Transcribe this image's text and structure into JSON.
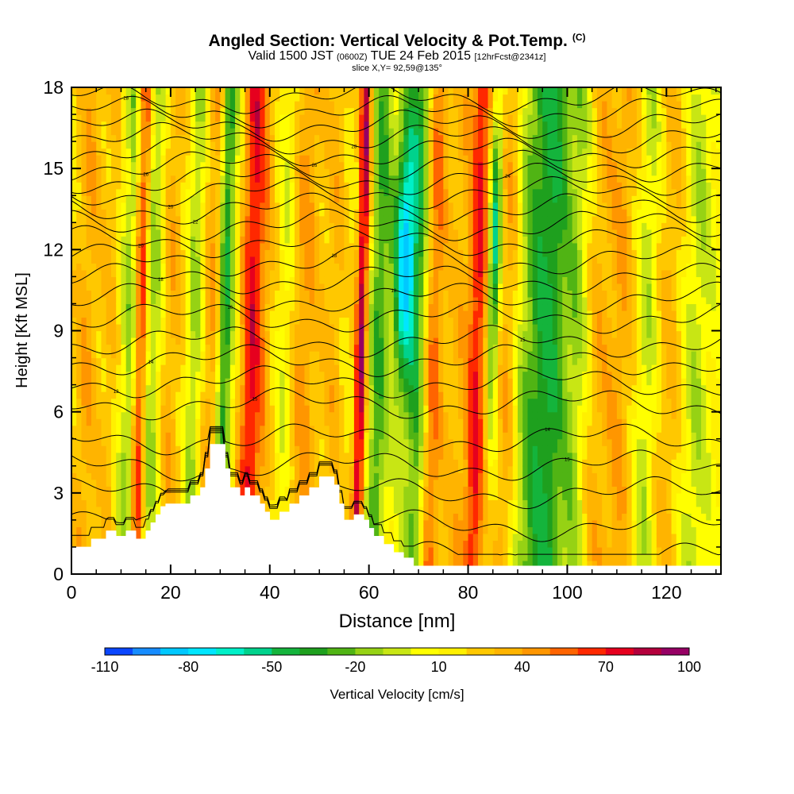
{
  "header": {
    "title": "Angled Section: Vertical Velocity & Pot.Temp.",
    "title_unit": "(C)",
    "valid_prefix": "Valid 1500 JST",
    "valid_utc": "(0600Z)",
    "valid_date": "TUE 24 Feb 2015",
    "forecast": "[12hrFcst@2341z]",
    "slice": "slice X,Y= 92,59@135°"
  },
  "chart_data": {
    "type": "heatmap",
    "xlabel": "Distance [nm]",
    "ylabel": "Height [Kft MSL]",
    "xlim": [
      0,
      131
    ],
    "ylim": [
      0,
      18
    ],
    "x_ticks": [
      0,
      20,
      40,
      60,
      80,
      100,
      120
    ],
    "y_ticks": [
      0,
      3,
      6,
      9,
      12,
      15,
      18
    ],
    "grid": false,
    "colorbar": {
      "label": "Vertical Velocity [cm/s]",
      "tick_labels": [
        "-110",
        "-80",
        "-50",
        "-20",
        "10",
        "40",
        "70",
        "100"
      ],
      "levels": [
        -110,
        -100,
        -90,
        -80,
        -70,
        -60,
        -50,
        -40,
        -30,
        -20,
        -10,
        0,
        10,
        20,
        30,
        40,
        50,
        60,
        70,
        80,
        90,
        100
      ],
      "colors": [
        "#0000ff",
        "#0a46ff",
        "#168cff",
        "#00c8ff",
        "#00e6ff",
        "#00f0c8",
        "#00d28c",
        "#14b43c",
        "#1ea01e",
        "#50b414",
        "#96d214",
        "#c8e614",
        "#ffff00",
        "#fff000",
        "#ffc800",
        "#ffb400",
        "#ff9600",
        "#ff6400",
        "#ff2800",
        "#e6001e",
        "#b4003c",
        "#960064",
        "#6e0096"
      ]
    },
    "velocity_features": [
      {
        "x": 3,
        "w": 3,
        "v": 25
      },
      {
        "x": 8,
        "w": 2,
        "v": 15
      },
      {
        "x": 12,
        "w": 2,
        "v": -30
      },
      {
        "x": 14,
        "w": 1.5,
        "v": 75
      },
      {
        "x": 16,
        "w": 2.5,
        "v": -35
      },
      {
        "x": 20,
        "w": 3,
        "v": 25
      },
      {
        "x": 25,
        "w": 2,
        "v": -30
      },
      {
        "x": 28,
        "w": 2.5,
        "v": 30
      },
      {
        "x": 31,
        "w": 1.5,
        "v": -55
      },
      {
        "x": 36,
        "w": 2,
        "v": 40
      },
      {
        "x": 38,
        "w": 3,
        "v": 30
      },
      {
        "x": 43,
        "w": 2,
        "v": -15
      },
      {
        "x": 47,
        "w": 3,
        "v": 30
      },
      {
        "x": 53,
        "w": 2.5,
        "v": 20
      },
      {
        "x": 58.5,
        "w": 1.2,
        "v": 75
      },
      {
        "x": 62,
        "w": 2,
        "v": -40
      },
      {
        "x": 67,
        "w": 2.2,
        "v": -95
      },
      {
        "x": 70,
        "w": 2,
        "v": -40
      },
      {
        "x": 73,
        "w": 2,
        "v": 40
      },
      {
        "x": 78,
        "w": 3,
        "v": 20
      },
      {
        "x": 82,
        "w": 2,
        "v": 55
      },
      {
        "x": 85,
        "w": 1.2,
        "v": -70
      },
      {
        "x": 88,
        "w": 2,
        "v": 25
      },
      {
        "x": 93,
        "w": 3,
        "v": -35
      },
      {
        "x": 97,
        "w": 3,
        "v": -45
      },
      {
        "x": 102,
        "w": 2.5,
        "v": -25
      },
      {
        "x": 106,
        "w": 3,
        "v": 20
      },
      {
        "x": 111,
        "w": 3,
        "v": 25
      },
      {
        "x": 116,
        "w": 2,
        "v": -20
      },
      {
        "x": 121,
        "w": 3,
        "v": 20
      },
      {
        "x": 126,
        "w": 3,
        "v": -20
      }
    ],
    "terrain_profile": [
      [
        0,
        1.0
      ],
      [
        4,
        1.0
      ],
      [
        4,
        1.3
      ],
      [
        7,
        1.3
      ],
      [
        7,
        1.6
      ],
      [
        9,
        1.6
      ],
      [
        9,
        1.4
      ],
      [
        11,
        1.4
      ],
      [
        11,
        1.6
      ],
      [
        13,
        1.6
      ],
      [
        13,
        1.3
      ],
      [
        15,
        1.3
      ],
      [
        15,
        1.6
      ],
      [
        16,
        1.6
      ],
      [
        16,
        1.9
      ],
      [
        17,
        1.9
      ],
      [
        17,
        2.2
      ],
      [
        18,
        2.2
      ],
      [
        18,
        2.5
      ],
      [
        19,
        2.5
      ],
      [
        19,
        2.6
      ],
      [
        24,
        2.6
      ],
      [
        24,
        2.9
      ],
      [
        26,
        2.9
      ],
      [
        26,
        3.2
      ],
      [
        27,
        3.2
      ],
      [
        27,
        3.9
      ],
      [
        28,
        3.9
      ],
      [
        28,
        4.8
      ],
      [
        31,
        4.8
      ],
      [
        31,
        3.9
      ],
      [
        32,
        3.9
      ],
      [
        32,
        3.2
      ],
      [
        34,
        3.2
      ],
      [
        34,
        2.9
      ],
      [
        35,
        2.9
      ],
      [
        35,
        3.2
      ],
      [
        36,
        3.2
      ],
      [
        36,
        2.9
      ],
      [
        38,
        2.9
      ],
      [
        38,
        2.6
      ],
      [
        39,
        2.6
      ],
      [
        39,
        2.3
      ],
      [
        40,
        2.3
      ],
      [
        40,
        2.0
      ],
      [
        42,
        2.0
      ],
      [
        42,
        2.3
      ],
      [
        44,
        2.3
      ],
      [
        44,
        2.6
      ],
      [
        46,
        2.6
      ],
      [
        46,
        2.9
      ],
      [
        48,
        2.9
      ],
      [
        48,
        3.2
      ],
      [
        50,
        3.2
      ],
      [
        50,
        3.6
      ],
      [
        53,
        3.6
      ],
      [
        53,
        3.3
      ],
      [
        54,
        3.3
      ],
      [
        54,
        2.6
      ],
      [
        55,
        2.6
      ],
      [
        55,
        2.0
      ],
      [
        57,
        2.0
      ],
      [
        57,
        2.2
      ],
      [
        59,
        2.2
      ],
      [
        59,
        2.0
      ],
      [
        60,
        2.0
      ],
      [
        60,
        1.7
      ],
      [
        61,
        1.7
      ],
      [
        61,
        1.4
      ],
      [
        63,
        1.4
      ],
      [
        63,
        1.1
      ],
      [
        65,
        1.1
      ],
      [
        65,
        0.8
      ],
      [
        67,
        0.8
      ],
      [
        67,
        0.6
      ],
      [
        69,
        0.6
      ],
      [
        69,
        0.3
      ],
      [
        131,
        0.3
      ]
    ],
    "theta_levels": [
      {
        "h": 0.6,
        "label": "",
        "lx": 0
      },
      {
        "h": 1.8,
        "label": "",
        "lx": 0
      },
      {
        "h": 3.0,
        "label": "",
        "lx": 0
      },
      {
        "h": 4.0,
        "label": "15",
        "lx": 100
      },
      {
        "h": 5.0,
        "label": "14",
        "lx": 96
      },
      {
        "h": 6.3,
        "label": "15",
        "lx": 37
      },
      {
        "h": 7.1,
        "label": "12",
        "lx": 9
      },
      {
        "h": 7.9,
        "label": "14",
        "lx": 16
      },
      {
        "h": 8.6,
        "label": "15",
        "lx": 91
      },
      {
        "h": 9.5,
        "label": "16",
        "lx": 32
      },
      {
        "h": 10.2,
        "label": "18",
        "lx": 65
      },
      {
        "h": 10.9,
        "label": "18",
        "lx": 18
      },
      {
        "h": 11.6,
        "label": "18",
        "lx": 53
      },
      {
        "h": 12.3,
        "label": "20",
        "lx": 14
      },
      {
        "h": 12.9,
        "label": "",
        "lx": 0
      },
      {
        "h": 13.5,
        "label": "22",
        "lx": 25
      },
      {
        "h": 14.1,
        "label": "20",
        "lx": 20
      },
      {
        "h": 14.6,
        "label": "24",
        "lx": 88
      },
      {
        "h": 15.1,
        "label": "26",
        "lx": 15
      },
      {
        "h": 15.6,
        "label": "26",
        "lx": 49
      },
      {
        "h": 16.1,
        "label": "28",
        "lx": 57
      },
      {
        "h": 16.6,
        "label": "",
        "lx": 0
      },
      {
        "h": 17.1,
        "label": "28",
        "lx": 11
      },
      {
        "h": 17.6,
        "label": "",
        "lx": 0
      }
    ]
  }
}
